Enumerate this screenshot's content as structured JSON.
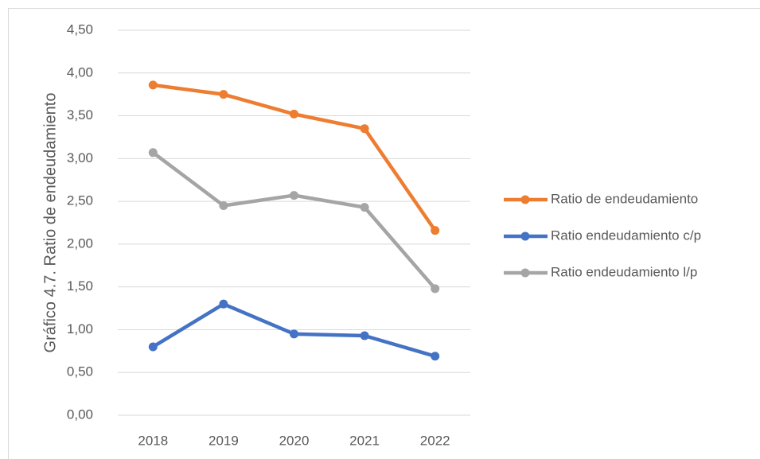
{
  "chart_data": {
    "type": "line",
    "y_label": "Gráfico 4.7. Ratio de endeudamiento",
    "categories": [
      "2018",
      "2019",
      "2020",
      "2021",
      "2022"
    ],
    "series": [
      {
        "name": "Ratio de endeudamiento",
        "color": "#ed7d31",
        "values": [
          3.86,
          3.75,
          3.52,
          3.35,
          2.16
        ]
      },
      {
        "name": "Ratio endeudamiento c/p",
        "color": "#4472c4",
        "values": [
          0.8,
          1.3,
          0.95,
          0.93,
          0.69
        ]
      },
      {
        "name": "Ratio endeudamiento l/p",
        "color": "#a5a5a5",
        "values": [
          3.07,
          2.45,
          2.57,
          2.43,
          1.48
        ]
      }
    ],
    "ylim": [
      0,
      4.5
    ],
    "yticks": [
      {
        "value": 0,
        "label": "0,00"
      },
      {
        "value": 0.5,
        "label": "0,50"
      },
      {
        "value": 1,
        "label": "1,00"
      },
      {
        "value": 1.5,
        "label": "1,50"
      },
      {
        "value": 2,
        "label": "2,00"
      },
      {
        "value": 2.5,
        "label": "2,50"
      },
      {
        "value": 3,
        "label": "3,00"
      },
      {
        "value": 3.5,
        "label": "3,50"
      },
      {
        "value": 4,
        "label": "4,00"
      },
      {
        "value": 4.5,
        "label": "4,50"
      }
    ],
    "grid": true,
    "legend": "right"
  }
}
